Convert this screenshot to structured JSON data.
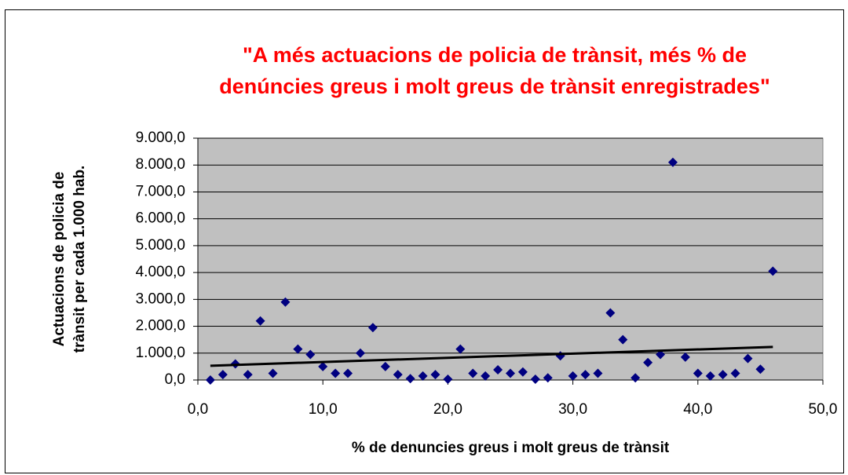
{
  "chart_data": {
    "type": "scatter",
    "title": [
      "\"A més actuacions de policia de trànsit, més % de",
      "denúncies greus i molt greus de trànsit enregistrades\""
    ],
    "x_label": "% de denuncies greus i molt greus de trànsit",
    "y_label": [
      "Actuacions de policia de",
      "trànsit per cada 1.000 hab."
    ],
    "series": [
      {
        "color": "#000080",
        "x": [
          1,
          2,
          3,
          4,
          5,
          6,
          7,
          8,
          9,
          10,
          11,
          12,
          13,
          14,
          15,
          16,
          17,
          18,
          19,
          20,
          21,
          22,
          23,
          24,
          25,
          26,
          27,
          28,
          29,
          30,
          31,
          32,
          33,
          34,
          35,
          36,
          37,
          38,
          39,
          40,
          41,
          42,
          43,
          44,
          45,
          46
        ],
        "values": [
          0,
          200,
          600,
          200,
          2200,
          250,
          2900,
          1150,
          950,
          500,
          250,
          250,
          1000,
          1950,
          500,
          200,
          50,
          150,
          200,
          30,
          1150,
          250,
          150,
          380,
          250,
          300,
          30,
          80,
          900,
          150,
          200,
          250,
          2500,
          1500,
          80,
          650,
          950,
          8100,
          850,
          250,
          150,
          200,
          250,
          800,
          400,
          4050
        ]
      }
    ],
    "trendline": {
      "color": "#000000",
      "x": [
        1,
        46
      ],
      "values": [
        530,
        1230
      ]
    },
    "xlim": [
      0,
      50
    ],
    "xticks": [
      {
        "value": 0,
        "label": "0,0"
      },
      {
        "value": 10,
        "label": "10,0"
      },
      {
        "value": 20,
        "label": "20,0"
      },
      {
        "value": 30,
        "label": "30,0"
      },
      {
        "value": 40,
        "label": "40,0"
      },
      {
        "value": 50,
        "label": "50,0"
      }
    ],
    "ylim": [
      0,
      9000
    ],
    "yticks": [
      {
        "value": 0,
        "label": "0,0"
      },
      {
        "value": 1000,
        "label": "1.000,0"
      },
      {
        "value": 2000,
        "label": "2.000,0"
      },
      {
        "value": 3000,
        "label": "3.000,0"
      },
      {
        "value": 4000,
        "label": "4.000,0"
      },
      {
        "value": 5000,
        "label": "5.000,0"
      },
      {
        "value": 6000,
        "label": "6.000,0"
      },
      {
        "value": 7000,
        "label": "7.000,0"
      },
      {
        "value": 8000,
        "label": "8.000,0"
      },
      {
        "value": 9000,
        "label": "9.000,0"
      }
    ],
    "grid": true,
    "plot_background": "#c0c0c0"
  }
}
